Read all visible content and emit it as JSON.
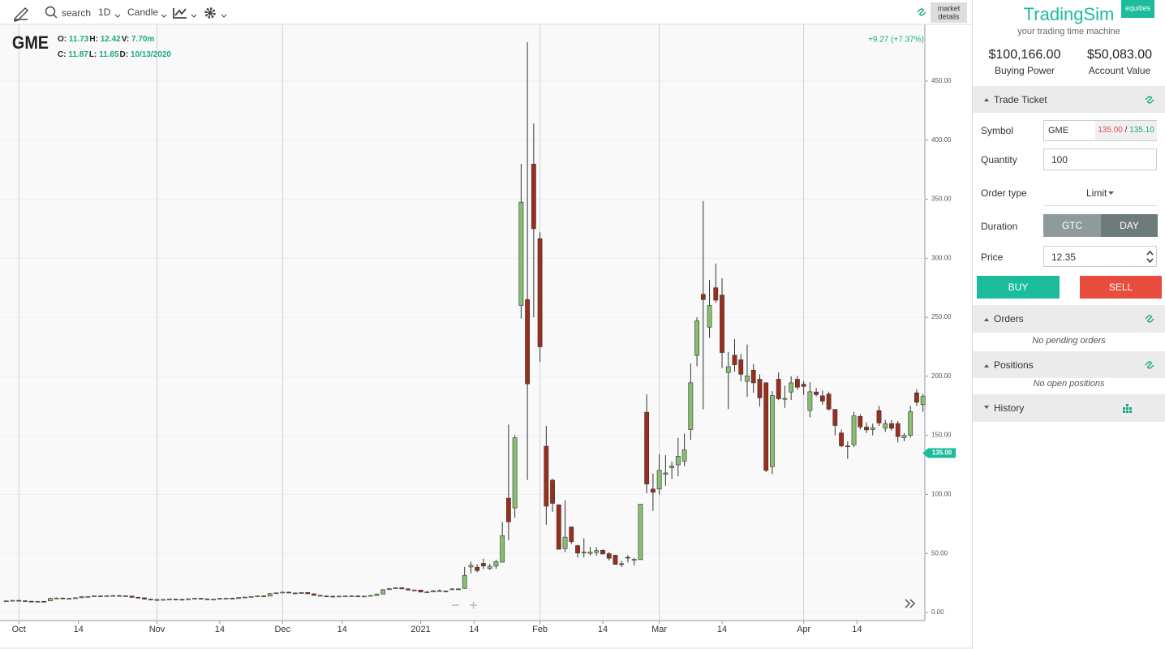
{
  "toolbar": {
    "search": "search",
    "interval": "1D",
    "chart_style": "Candle",
    "market_details": [
      "market",
      "details"
    ]
  },
  "readout": {
    "symbol": "GME",
    "row1": [
      {
        "label": "O:",
        "value": "11.73"
      },
      {
        "label": "H:",
        "value": "12.42"
      },
      {
        "label": "V:",
        "value": "7.70m"
      }
    ],
    "row2": [
      {
        "label": "C:",
        "value": "11.87"
      },
      {
        "label": "L:",
        "value": "11.65"
      },
      {
        "label": "D:",
        "value": "10/13/2020"
      }
    ],
    "change": "+9.27 (+7.37%)"
  },
  "chart_data": {
    "type": "candlestick",
    "categories": [
      null,
      null,
      null,
      null,
      null,
      null,
      null,
      null,
      null,
      null,
      null,
      null,
      null,
      null,
      null,
      null,
      null,
      null,
      null,
      null,
      null,
      null,
      null,
      null,
      null,
      null,
      null,
      null,
      null,
      null,
      null,
      null,
      null,
      null,
      null,
      null,
      null,
      null,
      null,
      null,
      null,
      null,
      null,
      null,
      null,
      null,
      null,
      null,
      null,
      null,
      null,
      null,
      null,
      null,
      null,
      null,
      null,
      null,
      null,
      null,
      null,
      null,
      null,
      null,
      null,
      null,
      null,
      null,
      null,
      null,
      null,
      null,
      null,
      null,
      null,
      null,
      null,
      null,
      null,
      null,
      null,
      null,
      null,
      null,
      null,
      null,
      null,
      null,
      null,
      null,
      null,
      null,
      null,
      null,
      null,
      null,
      null,
      null,
      null,
      null,
      null,
      null,
      null,
      null,
      null,
      null,
      null,
      null,
      null,
      null,
      null,
      null,
      null,
      null,
      null,
      null,
      null,
      null,
      null,
      null,
      null,
      null,
      null,
      null,
      null,
      null,
      null,
      null,
      null,
      null,
      null,
      null,
      null,
      null,
      null,
      null,
      null,
      null,
      null,
      null,
      null,
      null,
      null,
      null,
      null,
      null,
      null
    ],
    "open": [
      9.6,
      9.77,
      10.21,
      9.9,
      9.5,
      9.1,
      9.4,
      9.8,
      11.9,
      12.2,
      11.73,
      11.87,
      12.4,
      13.4,
      13.5,
      14.0,
      13.9,
      14.2,
      14.3,
      14.1,
      13.9,
      12.8,
      12.4,
      11.3,
      10.9,
      10.8,
      11.0,
      11.3,
      11.1,
      10.9,
      11.6,
      12.0,
      11.5,
      11.2,
      11.4,
      11.9,
      12.1,
      11.8,
      12.6,
      13.0,
      13.5,
      14.0,
      13.9,
      16.0,
      16.6,
      17.2,
      16.5,
      16.0,
      16.9,
      15.8,
      14.5,
      13.9,
      13.7,
      13.3,
      13.8,
      13.9,
      14.0,
      13.6,
      13.8,
      14.4,
      15.6,
      19.3,
      20.2,
      20.9,
      20.0,
      19.0,
      19.0,
      17.35,
      17.34,
      18.47,
      18.18,
      19.41,
      19.96,
      20.42,
      38.49,
      38.27,
      41.55,
      37.37,
      39.23,
      42.59,
      96.73,
      88.56,
      260,
      265,
      379.71,
      316.56,
      140.76,
      112.01,
      91.19,
      54.04,
      72.41,
      56.61,
      50.77,
      50.01,
      50.75,
      52.66,
      49.77,
      48.49,
      41.28,
      46.69,
      44.7,
      44.7,
      169.56,
      104.54,
      104.54,
      116.93,
      122.5,
      125,
      128.17,
      154.89,
      217.71,
      269.43,
      241.64,
      275,
      268.8,
      203.16,
      217.84,
      214,
      195.73,
      205.26,
      197.5,
      194.49,
      123.49,
      197.52,
      180.56,
      186.7,
      197.5,
      193.3,
      171,
      186.7,
      183.5,
      185,
      172,
      152,
      141,
      142,
      166,
      157,
      155,
      171,
      156,
      160,
      160,
      148,
      150,
      186,
      176
    ],
    "high": [
      10.2,
      10.6,
      10.6,
      10.2,
      9.8,
      9.8,
      9.7,
      12.5,
      12.7,
      12.6,
      12.42,
      12.8,
      13.8,
      13.9,
      14.4,
      14.4,
      14.6,
      14.8,
      14.7,
      14.5,
      14.2,
      13.2,
      12.8,
      11.7,
      11.3,
      11.4,
      11.7,
      11.7,
      11.5,
      12.0,
      12.4,
      12.3,
      11.9,
      11.8,
      12.3,
      12.5,
      12.5,
      13.0,
      13.4,
      13.9,
      14.4,
      14.4,
      16.4,
      17.0,
      17.6,
      17.6,
      16.9,
      17.3,
      17.2,
      16.1,
      14.8,
      14.3,
      14.0,
      14.2,
      14.3,
      14.4,
      14.4,
      14.2,
      14.8,
      16.0,
      19.7,
      20.6,
      21.3,
      21.3,
      20.4,
      19.4,
      19.1,
      18.08,
      18.98,
      19.45,
      18.3,
      20.65,
      20.4,
      38.65,
      43.06,
      40.75,
      45.52,
      41.19,
      44.75,
      76.76,
      159.18,
      150,
      380,
      483,
      413.98,
      322,
      158,
      113.4,
      91.5,
      95,
      72.66,
      57.25,
      62.83,
      55.32,
      55.24,
      53.5,
      51.19,
      48.87,
      43.72,
      48.51,
      46.23,
      91.71,
      184.68,
      117.75,
      133.99,
      133.2,
      127.75,
      147.87,
      151.53,
      210.87,
      249.85,
      348.5,
      281.5,
      295.5,
      283,
      220.7,
      231.47,
      218.88,
      227,
      210.39,
      201.75,
      195,
      187.5,
      203.35,
      192.05,
      200,
      200.28,
      196,
      195,
      190,
      188,
      187,
      172,
      155,
      145,
      170,
      168,
      161,
      160,
      175,
      163,
      163,
      162,
      152,
      175,
      189,
      185
    ],
    "low": [
      9.3,
      9.5,
      9.6,
      9.2,
      8.8,
      8.9,
      9.0,
      9.6,
      11.5,
      11.8,
      11.65,
      11.6,
      12.1,
      13.0,
      13.2,
      13.5,
      13.6,
      13.9,
      13.8,
      13.5,
      12.4,
      12.0,
      11.0,
      10.5,
      10.4,
      10.5,
      10.7,
      10.8,
      10.6,
      10.6,
      11.3,
      11.2,
      10.9,
      10.9,
      11.1,
      11.6,
      11.5,
      11.5,
      12.3,
      12.7,
      13.2,
      13.5,
      13.6,
      15.7,
      16.3,
      16.2,
      15.7,
      15.7,
      15.5,
      14.2,
      13.6,
      13.4,
      13.0,
      13.0,
      13.5,
      13.6,
      13.3,
      13.3,
      13.5,
      14.1,
      15.3,
      19.0,
      19.9,
      19.7,
      18.7,
      18.5,
      17.15,
      17.23,
      17.33,
      18.02,
      17.08,
      19.01,
      19.32,
      20.03,
      33.05,
      34.01,
      36.64,
      36.06,
      37,
      42.32,
      61.13,
      80.2,
      249,
      112.25,
      250,
      212,
      74.22,
      85.25,
      53.33,
      51.09,
      58.02,
      46.5,
      46.55,
      48.22,
      48.05,
      49.04,
      44.01,
      40.65,
      38.5,
      42.4,
      40,
      44.7,
      101,
      86,
      99.97,
      107.4,
      113.11,
      115.35,
      124,
      146.1,
      208.51,
      172,
      232.6,
      262.27,
      206.95,
      172.35,
      204,
      195.65,
      182.66,
      186.11,
      174.5,
      118.86,
      117.16,
      179.8,
      173.3,
      180,
      188.6,
      184.2,
      165.2,
      183,
      176,
      171,
      150,
      140,
      130,
      140,
      155,
      152,
      150,
      158,
      153,
      154,
      144,
      145,
      148,
      175,
      170
    ],
    "close": [
      9.77,
      10.21,
      9.9,
      9.5,
      9.1,
      9.4,
      9.3,
      11.9,
      12.2,
      12.1,
      11.87,
      12.4,
      13.4,
      13.5,
      14.0,
      13.9,
      14.2,
      14.3,
      14.1,
      13.9,
      12.8,
      12.4,
      11.3,
      10.9,
      10.8,
      11.0,
      11.3,
      11.1,
      10.9,
      11.6,
      12.0,
      11.5,
      11.2,
      11.4,
      11.9,
      12.1,
      11.8,
      12.6,
      13.0,
      13.5,
      14.0,
      13.9,
      16.0,
      16.6,
      17.2,
      16.5,
      16.0,
      16.9,
      15.8,
      14.5,
      13.9,
      13.7,
      13.3,
      13.8,
      13.9,
      14.0,
      13.6,
      13.8,
      14.4,
      15.6,
      19.3,
      20.2,
      20.9,
      20.0,
      19.0,
      18.8,
      17.25,
      17.37,
      18.36,
      18.08,
      17.69,
      19.94,
      19.95,
      31.4,
      39.91,
      35.5,
      39.36,
      39.12,
      43.03,
      65.01,
      76.79,
      147.98,
      347.51,
      193.6,
      325,
      225,
      90,
      92.41,
      53.5,
      63.77,
      60,
      50.31,
      51.2,
      51.1,
      52.4,
      49.51,
      45.94,
      40.69,
      40.59,
      46,
      44.97,
      91.71,
      108.73,
      101.74,
      120.4,
      118.18,
      124.18,
      132.35,
      137.74,
      194.5,
      246.9,
      265,
      260,
      264.5,
      220.14,
      208.17,
      209.81,
      201.75,
      200.27,
      194.49,
      181.75,
      120.34,
      183.75,
      181,
      181.3,
      194.46,
      190.8,
      191.45,
      186.95,
      184.5,
      179,
      172.2,
      158.36,
      141.09,
      140.99,
      166.53,
      157.11,
      154.69,
      156.44,
      160.5,
      160,
      156,
      149,
      150,
      170,
      178,
      183
    ],
    "up_color": "#86bf6e",
    "down_color": "#9a2e1c",
    "xlim": [
      -1,
      146.3
    ],
    "xticks": [
      {
        "value": 2,
        "label": "Oct"
      },
      {
        "value": 11.5,
        "label": "14"
      },
      {
        "value": 24,
        "label": "Nov"
      },
      {
        "value": 34,
        "label": "14"
      },
      {
        "value": 44,
        "label": "Dec"
      },
      {
        "value": 53.5,
        "label": "14"
      },
      {
        "value": 66,
        "label": "2021"
      },
      {
        "value": 74.5,
        "label": "14"
      },
      {
        "value": 85,
        "label": "Feb"
      },
      {
        "value": 95,
        "label": "14"
      },
      {
        "value": 104,
        "label": "Mar"
      },
      {
        "value": 114,
        "label": "14"
      },
      {
        "value": 127,
        "label": "Apr"
      },
      {
        "value": 135.5,
        "label": "14"
      }
    ],
    "ylim": [
      -6.9,
      498.1
    ],
    "yticks": [
      {
        "value": 0,
        "label": "0.00"
      },
      {
        "value": 50,
        "label": "50.00"
      },
      {
        "value": 100,
        "label": "100.00"
      },
      {
        "value": 150,
        "label": "150.00"
      },
      {
        "value": 200,
        "label": "200.00"
      },
      {
        "value": 250,
        "label": "250.00"
      },
      {
        "value": 300,
        "label": "300.00"
      },
      {
        "value": 350,
        "label": "350.00"
      },
      {
        "value": 400,
        "label": "400.00"
      },
      {
        "value": 450,
        "label": "450.00"
      }
    ],
    "grid": true,
    "last_price": {
      "value": 135,
      "label": "135.00"
    }
  },
  "panel": {
    "brand": "TradingSim",
    "badge": "equities",
    "tagline": "your trading time machine",
    "buying_power": {
      "value": "$100,166.00",
      "label": "Buying Power"
    },
    "account_value": {
      "value": "$50,083.00",
      "label": "Account Value"
    },
    "trade_ticket": {
      "title": "Trade Ticket",
      "symbol_label": "Symbol",
      "symbol": "GME",
      "bid": "135.00",
      "sep": "/",
      "ask": "135.10",
      "quantity_label": "Quantity",
      "quantity": "100",
      "order_type_label": "Order type",
      "order_type": "Limit",
      "duration_label": "Duration",
      "duration_options": [
        "GTC",
        "DAY"
      ],
      "price_label": "Price",
      "price": "12.35",
      "buy": "BUY",
      "sell": "SELL"
    },
    "orders": {
      "title": "Orders",
      "empty": "No pending orders"
    },
    "positions": {
      "title": "Positions",
      "empty": "No open positions"
    },
    "history": {
      "title": "History"
    }
  }
}
